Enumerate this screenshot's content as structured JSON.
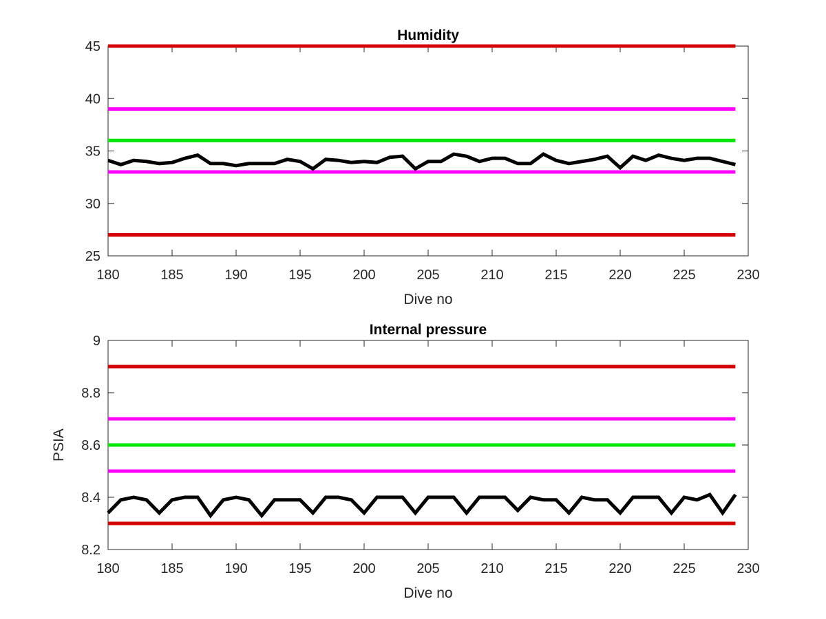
{
  "chart_data": [
    {
      "type": "line",
      "title": "Humidity",
      "xlabel": "Dive no",
      "ylabel": "",
      "xlim": [
        180,
        230
      ],
      "ylim": [
        25,
        45
      ],
      "xticks": [
        180,
        185,
        190,
        195,
        200,
        205,
        210,
        215,
        220,
        225,
        230
      ],
      "yticks": [
        25,
        30,
        35,
        40,
        45
      ],
      "grid": false,
      "legend": "none",
      "reference_lines": [
        {
          "y": 45,
          "color": "#d40000"
        },
        {
          "y": 39,
          "color": "#ff00ff"
        },
        {
          "y": 36,
          "color": "#00e600"
        },
        {
          "y": 33,
          "color": "#ff00ff"
        },
        {
          "y": 27,
          "color": "#d40000"
        }
      ],
      "series": [
        {
          "color": "#000000",
          "x": [
            180,
            181,
            182,
            183,
            184,
            185,
            186,
            187,
            188,
            189,
            190,
            191,
            192,
            193,
            194,
            195,
            196,
            197,
            198,
            199,
            200,
            201,
            202,
            203,
            204,
            205,
            206,
            207,
            208,
            209,
            210,
            211,
            212,
            213,
            214,
            215,
            216,
            217,
            218,
            219,
            220,
            221,
            222,
            223,
            224,
            225,
            226,
            227,
            228,
            229
          ],
          "y": [
            34.1,
            33.7,
            34.1,
            34.0,
            33.8,
            33.9,
            34.3,
            34.6,
            33.8,
            33.8,
            33.6,
            33.8,
            33.8,
            33.8,
            34.2,
            34.0,
            33.3,
            34.2,
            34.1,
            33.9,
            34.0,
            33.9,
            34.4,
            34.5,
            33.3,
            34.0,
            34.0,
            34.7,
            34.5,
            34.0,
            34.3,
            34.3,
            33.8,
            33.8,
            34.7,
            34.1,
            33.8,
            34.0,
            34.2,
            34.5,
            33.4,
            34.5,
            34.1,
            34.6,
            34.3,
            34.1,
            34.3,
            34.3,
            34.0,
            33.7
          ]
        }
      ]
    },
    {
      "type": "line",
      "title": "Internal pressure",
      "xlabel": "Dive no",
      "ylabel": "PSIA",
      "xlim": [
        180,
        230
      ],
      "ylim": [
        8.2,
        9
      ],
      "xticks": [
        180,
        185,
        190,
        195,
        200,
        205,
        210,
        215,
        220,
        225,
        230
      ],
      "yticks": [
        8.2,
        8.4,
        8.6,
        8.8,
        9
      ],
      "grid": false,
      "legend": "none",
      "reference_lines": [
        {
          "y": 8.9,
          "color": "#d40000"
        },
        {
          "y": 8.7,
          "color": "#ff00ff"
        },
        {
          "y": 8.6,
          "color": "#00e600"
        },
        {
          "y": 8.5,
          "color": "#ff00ff"
        },
        {
          "y": 8.3,
          "color": "#d40000"
        }
      ],
      "series": [
        {
          "color": "#000000",
          "x": [
            180,
            181,
            182,
            183,
            184,
            185,
            186,
            187,
            188,
            189,
            190,
            191,
            192,
            193,
            194,
            195,
            196,
            197,
            198,
            199,
            200,
            201,
            202,
            203,
            204,
            205,
            206,
            207,
            208,
            209,
            210,
            211,
            212,
            213,
            214,
            215,
            216,
            217,
            218,
            219,
            220,
            221,
            222,
            223,
            224,
            225,
            226,
            227,
            228,
            229
          ],
          "y": [
            8.34,
            8.39,
            8.4,
            8.39,
            8.34,
            8.39,
            8.4,
            8.4,
            8.33,
            8.39,
            8.4,
            8.39,
            8.33,
            8.39,
            8.39,
            8.39,
            8.34,
            8.4,
            8.4,
            8.39,
            8.34,
            8.4,
            8.4,
            8.4,
            8.34,
            8.4,
            8.4,
            8.4,
            8.34,
            8.4,
            8.4,
            8.4,
            8.35,
            8.4,
            8.39,
            8.39,
            8.34,
            8.4,
            8.39,
            8.39,
            8.34,
            8.4,
            8.4,
            8.4,
            8.34,
            8.4,
            8.39,
            8.41,
            8.34,
            8.41
          ]
        }
      ]
    }
  ]
}
